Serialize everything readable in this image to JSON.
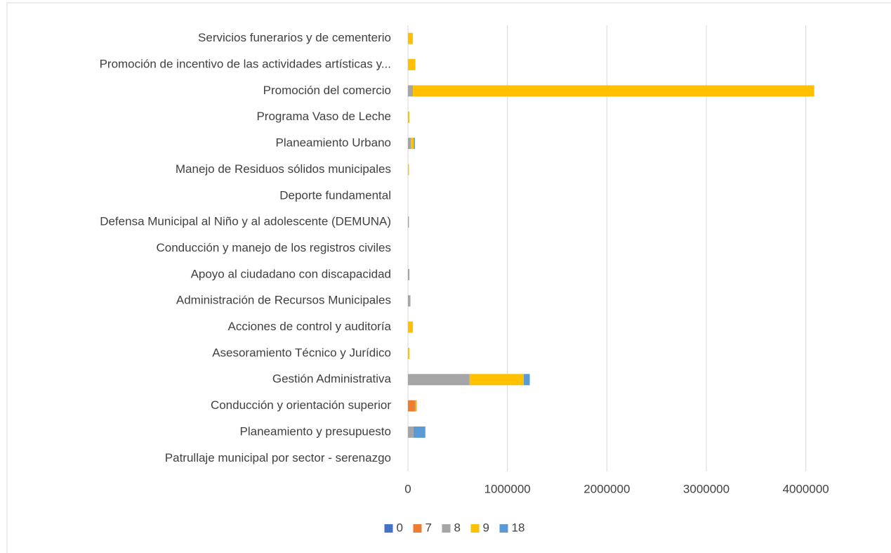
{
  "chart_data": {
    "type": "stacked_barh",
    "categories": [
      "Servicios funerarios y de cementerio",
      "Promoción de incentivo de las actividades artísticas y...",
      "Promoción del comercio",
      "Programa Vaso de Leche",
      "Planeamiento Urbano",
      "Manejo de Residuos sólidos municipales",
      "Deporte fundamental",
      "Defensa Municipal al Niño y al adolescente (DEMUNA)",
      "Conducción y manejo de los registros civiles",
      "Apoyo al ciudadano con discapacidad",
      "Administración de Recursos Municipales",
      "Acciones de control y auditoría",
      "Asesoramiento Técnico y Jurídico",
      "Gestión Administrativa",
      "Conducción y orientación superior",
      "Planeamiento y presupuesto",
      "Patrullaje municipal por sector - serenazgo"
    ],
    "series": [
      {
        "name": "0",
        "color": "#4472c4",
        "values": [
          0,
          0,
          0,
          0,
          0,
          0,
          0,
          0,
          0,
          0,
          0,
          0,
          0,
          0,
          0,
          0,
          0
        ]
      },
      {
        "name": "7",
        "color": "#ed7d31",
        "values": [
          0,
          0,
          0,
          0,
          0,
          0,
          0,
          0,
          0,
          0,
          0,
          0,
          0,
          0,
          70000,
          0,
          0
        ]
      },
      {
        "name": "8",
        "color": "#a5a5a5",
        "values": [
          0,
          0,
          50000,
          0,
          30000,
          0,
          0,
          10000,
          0,
          15000,
          25000,
          0,
          0,
          620000,
          10000,
          55000,
          0
        ]
      },
      {
        "name": "9",
        "color": "#ffc000",
        "values": [
          50000,
          75000,
          4035000,
          15000,
          30000,
          10000,
          0,
          0,
          0,
          0,
          0,
          50000,
          15000,
          545000,
          10000,
          0,
          0
        ]
      },
      {
        "name": "18",
        "color": "#5b9bd5",
        "values": [
          0,
          0,
          0,
          0,
          10000,
          0,
          0,
          0,
          0,
          0,
          0,
          0,
          0,
          60000,
          0,
          120000,
          0
        ]
      }
    ],
    "xlim": [
      0,
      4800000
    ],
    "xticks": [
      0,
      1000000,
      2000000,
      3000000,
      4000000
    ],
    "grid": true,
    "legend": "bottom"
  }
}
